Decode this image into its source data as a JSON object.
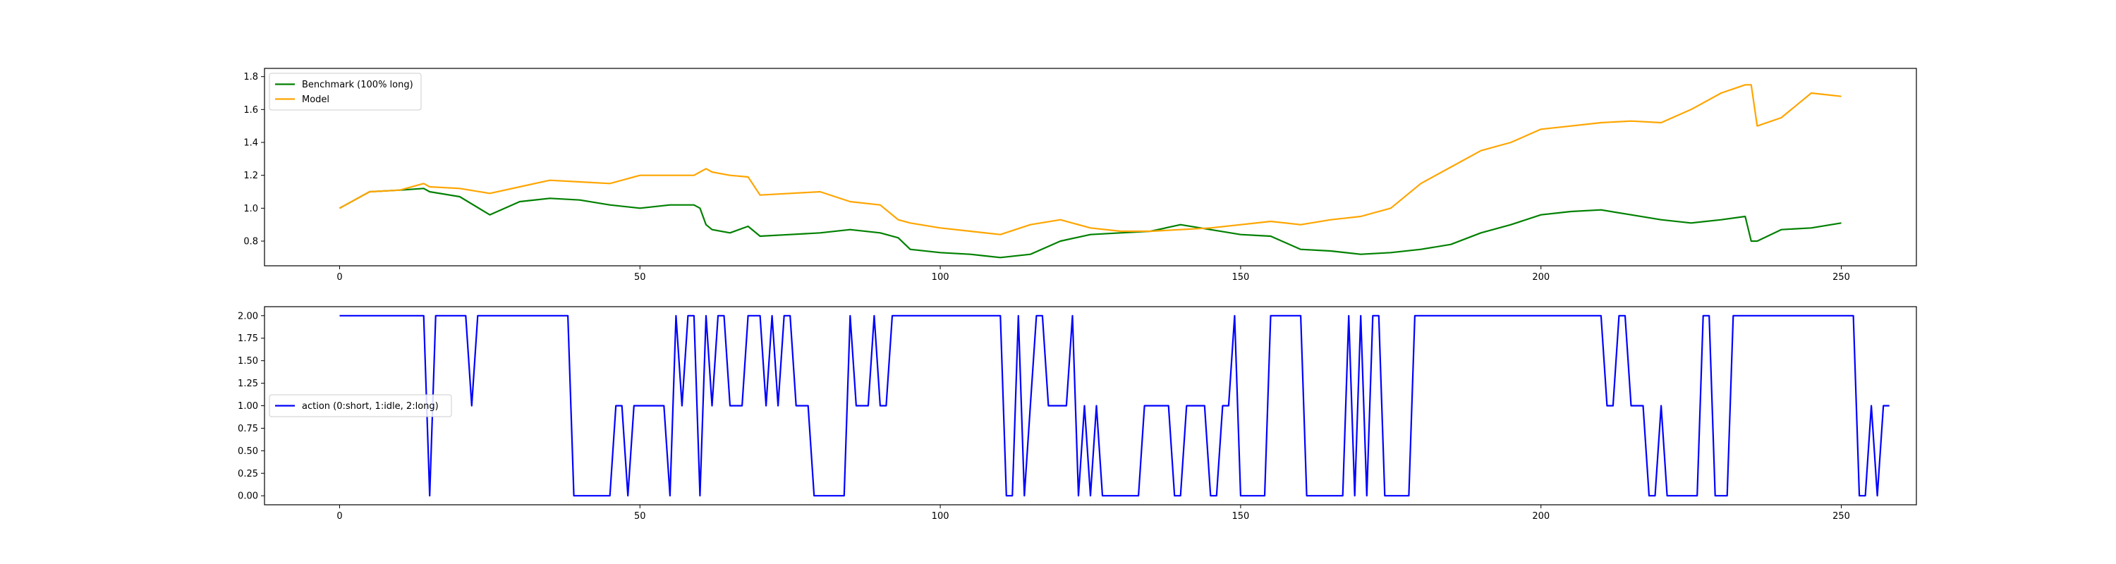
{
  "chart_data": [
    {
      "type": "line",
      "title": "",
      "xlabel": "",
      "ylabel": "",
      "xlim": [
        -12.5,
        262.5
      ],
      "ylim": [
        0.65,
        1.85
      ],
      "x_ticks": [
        "0",
        "50",
        "100",
        "150",
        "200",
        "250"
      ],
      "y_ticks": [
        "0.8",
        "1.0",
        "1.2",
        "1.4",
        "1.6",
        "1.8"
      ],
      "grid": false,
      "legend_placement": "upper-left",
      "x_keypoints": [
        0,
        5,
        10,
        14,
        15,
        20,
        25,
        30,
        35,
        40,
        45,
        50,
        55,
        59,
        60,
        61,
        62,
        65,
        68,
        70,
        75,
        80,
        85,
        90,
        93,
        95,
        100,
        105,
        110,
        115,
        120,
        125,
        130,
        135,
        140,
        145,
        150,
        155,
        160,
        165,
        170,
        175,
        180,
        185,
        190,
        195,
        200,
        205,
        210,
        215,
        220,
        225,
        230,
        234,
        235,
        236,
        240,
        245,
        250
      ],
      "series": [
        {
          "name": "Benchmark (100% long)",
          "color": "#008000",
          "values": [
            1.0,
            1.1,
            1.11,
            1.12,
            1.1,
            1.07,
            0.96,
            1.04,
            1.06,
            1.05,
            1.02,
            1.0,
            1.02,
            1.02,
            1.0,
            0.9,
            0.87,
            0.85,
            0.89,
            0.83,
            0.84,
            0.85,
            0.87,
            0.85,
            0.82,
            0.75,
            0.73,
            0.72,
            0.7,
            0.72,
            0.8,
            0.84,
            0.85,
            0.86,
            0.9,
            0.87,
            0.84,
            0.83,
            0.75,
            0.74,
            0.72,
            0.73,
            0.75,
            0.78,
            0.85,
            0.9,
            0.96,
            0.98,
            0.99,
            0.96,
            0.93,
            0.91,
            0.93,
            0.95,
            0.8,
            0.8,
            0.87,
            0.88,
            0.91
          ]
        },
        {
          "name": "Model",
          "color": "#ffa500",
          "values": [
            1.0,
            1.1,
            1.11,
            1.15,
            1.13,
            1.12,
            1.09,
            1.13,
            1.17,
            1.16,
            1.15,
            1.2,
            1.2,
            1.2,
            1.22,
            1.24,
            1.22,
            1.2,
            1.19,
            1.08,
            1.09,
            1.1,
            1.04,
            1.02,
            0.93,
            0.91,
            0.88,
            0.86,
            0.84,
            0.9,
            0.93,
            0.88,
            0.86,
            0.86,
            0.87,
            0.88,
            0.9,
            0.92,
            0.9,
            0.93,
            0.95,
            1.0,
            1.15,
            1.25,
            1.35,
            1.4,
            1.48,
            1.5,
            1.52,
            1.53,
            1.52,
            1.6,
            1.7,
            1.75,
            1.75,
            1.5,
            1.55,
            1.7,
            1.68
          ]
        }
      ]
    },
    {
      "type": "line",
      "title": "",
      "xlabel": "",
      "ylabel": "",
      "xlim": [
        -12.5,
        262.5
      ],
      "ylim": [
        -0.1,
        2.1
      ],
      "x_ticks": [
        "0",
        "50",
        "100",
        "150",
        "200",
        "250"
      ],
      "y_ticks": [
        "0.00",
        "0.25",
        "0.50",
        "0.75",
        "1.00",
        "1.25",
        "1.50",
        "1.75",
        "2.00"
      ],
      "grid": false,
      "legend_placement": "center-left",
      "series": [
        {
          "name": "action (0:short, 1:idle, 2:long)",
          "color": "#0000ff",
          "values": [
            2,
            2,
            2,
            2,
            2,
            2,
            2,
            2,
            2,
            2,
            2,
            2,
            2,
            2,
            2,
            0,
            2,
            2,
            2,
            2,
            2,
            2,
            1,
            2,
            2,
            2,
            2,
            2,
            2,
            2,
            2,
            2,
            2,
            2,
            2,
            2,
            2,
            2,
            2,
            0,
            0,
            0,
            0,
            0,
            0,
            0,
            1,
            1,
            0,
            1,
            1,
            1,
            1,
            1,
            1,
            0,
            2,
            1,
            2,
            2,
            0,
            2,
            1,
            2,
            2,
            1,
            1,
            1,
            2,
            2,
            2,
            1,
            2,
            1,
            2,
            2,
            1,
            1,
            1,
            0,
            0,
            0,
            0,
            0,
            0,
            2,
            1,
            1,
            1,
            2,
            1,
            1,
            2,
            2,
            2,
            2,
            2,
            2,
            2,
            2,
            2,
            2,
            2,
            2,
            2,
            2,
            2,
            2,
            2,
            2,
            2,
            0,
            0,
            2,
            0,
            1,
            2,
            2,
            1,
            1,
            1,
            1,
            2,
            0,
            1,
            0,
            1,
            0,
            0,
            0,
            0,
            0,
            0,
            0,
            1,
            1,
            1,
            1,
            1,
            0,
            0,
            1,
            1,
            1,
            1,
            0,
            0,
            1,
            1,
            2,
            0,
            0,
            0,
            0,
            0,
            2,
            2,
            2,
            2,
            2,
            2,
            0,
            0,
            0,
            0,
            0,
            0,
            0,
            2,
            0,
            2,
            0,
            2,
            2,
            0,
            0,
            0,
            0,
            0,
            2,
            2,
            2,
            2,
            2,
            2,
            2,
            2,
            2,
            2,
            2,
            2,
            2,
            2,
            2,
            2,
            2,
            2,
            2,
            2,
            2,
            2,
            2,
            2,
            2,
            2,
            2,
            2,
            2,
            2,
            2,
            2,
            1,
            1,
            2,
            2,
            1,
            1,
            1,
            0,
            0,
            1,
            0,
            0,
            0,
            0,
            0,
            0,
            2,
            2,
            0,
            0,
            0,
            2,
            2,
            2,
            2,
            2,
            2,
            2,
            2,
            2,
            2,
            2,
            2,
            2,
            2,
            2,
            2,
            2,
            2,
            2,
            2,
            2,
            0,
            0,
            1,
            0,
            1,
            1
          ]
        }
      ]
    }
  ]
}
